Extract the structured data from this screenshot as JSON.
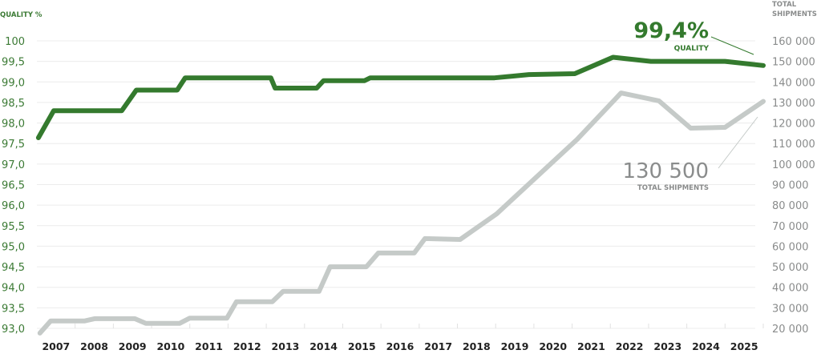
{
  "chart_data": {
    "type": "line",
    "title": "",
    "x_ticks": [
      "2007",
      "2008",
      "2009",
      "2010",
      "2011",
      "2012",
      "2013",
      "2014",
      "2015",
      "2016",
      "2017",
      "2018",
      "2019",
      "2020",
      "2021",
      "2022",
      "2023",
      "2024",
      "2025"
    ],
    "x_range": [
      2007,
      2026
    ],
    "left_axis": {
      "label": "QUALITY %",
      "range": [
        93.0,
        100
      ],
      "ticks": [
        "100",
        "99,5",
        "99,0",
        "98,5",
        "98,0",
        "97,5",
        "97,0",
        "96,5",
        "96,0",
        "95,5",
        "95,0",
        "94,5",
        "94,0",
        "93,5",
        "93,0"
      ],
      "tick_values": [
        100,
        99.5,
        99,
        98.5,
        98,
        97.5,
        97,
        96.5,
        96,
        95.5,
        95,
        94.5,
        94,
        93.5,
        93
      ]
    },
    "right_axis": {
      "label_lines": [
        "TOTAL",
        "SHIPMENTS"
      ],
      "range": [
        20000,
        160000
      ],
      "ticks": [
        "160 000",
        "150 000",
        "140 000",
        "130 000",
        "120 000",
        "110 000",
        "100 000",
        "90 000",
        "80 000",
        "70 000",
        "60 000",
        "50 000",
        "40 000",
        "30 000",
        "20 000"
      ],
      "tick_values": [
        160000,
        150000,
        140000,
        130000,
        120000,
        110000,
        100000,
        90000,
        80000,
        70000,
        60000,
        50000,
        40000,
        30000,
        20000
      ]
    },
    "grid": true,
    "series": [
      {
        "name": "Quality",
        "axis": "left",
        "color": "#347a2e",
        "points": [
          [
            2007.04,
            97.64
          ],
          [
            2007.44,
            98.3
          ],
          [
            2009.22,
            98.3
          ],
          [
            2009.6,
            98.8
          ],
          [
            2010.67,
            98.8
          ],
          [
            2010.88,
            99.1
          ],
          [
            2013.12,
            99.1
          ],
          [
            2013.23,
            98.85
          ],
          [
            2014.32,
            98.85
          ],
          [
            2014.5,
            99.03
          ],
          [
            2015.57,
            99.03
          ],
          [
            2015.72,
            99.1
          ],
          [
            2018.97,
            99.1
          ],
          [
            2019.87,
            99.18
          ],
          [
            2021.07,
            99.2
          ],
          [
            2022.07,
            99.6
          ],
          [
            2023.06,
            99.5
          ],
          [
            2025.0,
            99.5
          ],
          [
            2026.0,
            99.4
          ]
        ]
      },
      {
        "name": "Total shipments",
        "axis": "right",
        "color": "#c5cac8",
        "points": [
          [
            2007.08,
            17700
          ],
          [
            2007.36,
            23600
          ],
          [
            2008.24,
            23600
          ],
          [
            2008.51,
            24700
          ],
          [
            2009.56,
            24700
          ],
          [
            2009.85,
            22400
          ],
          [
            2010.73,
            22400
          ],
          [
            2011.0,
            25000
          ],
          [
            2011.97,
            25000
          ],
          [
            2012.22,
            33000
          ],
          [
            2013.16,
            33000
          ],
          [
            2013.44,
            38000
          ],
          [
            2014.38,
            38000
          ],
          [
            2014.67,
            50000
          ],
          [
            2015.62,
            50000
          ],
          [
            2015.93,
            56700
          ],
          [
            2016.87,
            56700
          ],
          [
            2017.15,
            63700
          ],
          [
            2018.07,
            63300
          ],
          [
            2019.03,
            75800
          ],
          [
            2021.13,
            112000
          ],
          [
            2022.28,
            134600
          ],
          [
            2023.27,
            130800
          ],
          [
            2024.1,
            117500
          ],
          [
            2025.0,
            117900
          ],
          [
            2026.0,
            130500
          ]
        ]
      }
    ],
    "annotations": {
      "quality": {
        "value": "99,4%",
        "label": "QUALITY"
      },
      "shipments": {
        "value": "130 500",
        "label": "TOTAL SHIPMENTS"
      }
    }
  }
}
